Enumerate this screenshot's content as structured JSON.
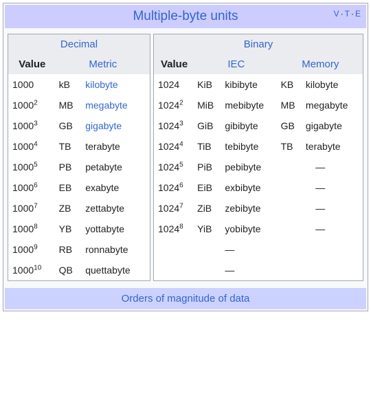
{
  "title": "Multiple-byte units",
  "vte": {
    "v": "V",
    "t": "T",
    "e": "E"
  },
  "footer_label": "Orders of magnitude of data",
  "colors": {
    "header_bg": "#ccccff",
    "sub_header_bg": "#eaecf0",
    "link": "#3366cc",
    "border": "#a2a9b1",
    "footer_bg": "#ccd2ff"
  },
  "decimal": {
    "heading": "Decimal",
    "col_value": "Value",
    "col_metric": "Metric",
    "base": "1000",
    "rows": [
      {
        "exp": "",
        "sym": "kB",
        "name": "kilobyte",
        "link": true
      },
      {
        "exp": "2",
        "sym": "MB",
        "name": "megabyte",
        "link": true
      },
      {
        "exp": "3",
        "sym": "GB",
        "name": "gigabyte",
        "link": true
      },
      {
        "exp": "4",
        "sym": "TB",
        "name": "terabyte",
        "link": false
      },
      {
        "exp": "5",
        "sym": "PB",
        "name": "petabyte",
        "link": false
      },
      {
        "exp": "6",
        "sym": "EB",
        "name": "exabyte",
        "link": false
      },
      {
        "exp": "7",
        "sym": "ZB",
        "name": "zettabyte",
        "link": false
      },
      {
        "exp": "8",
        "sym": "YB",
        "name": "yottabyte",
        "link": false
      },
      {
        "exp": "9",
        "sym": "RB",
        "name": "ronnabyte",
        "link": false
      },
      {
        "exp": "10",
        "sym": "QB",
        "name": "quettabyte",
        "link": false
      }
    ]
  },
  "binary": {
    "heading": "Binary",
    "col_value": "Value",
    "col_iec": "IEC",
    "col_memory": "Memory",
    "base": "1024",
    "rows": [
      {
        "exp": "",
        "iec_sym": "KiB",
        "iec_name": "kibibyte",
        "mem_sym": "KB",
        "mem_name": "kilobyte"
      },
      {
        "exp": "2",
        "iec_sym": "MiB",
        "iec_name": "mebibyte",
        "mem_sym": "MB",
        "mem_name": "megabyte"
      },
      {
        "exp": "3",
        "iec_sym": "GiB",
        "iec_name": "gibibyte",
        "mem_sym": "GB",
        "mem_name": "gigabyte"
      },
      {
        "exp": "4",
        "iec_sym": "TiB",
        "iec_name": "tebibyte",
        "mem_sym": "TB",
        "mem_name": "terabyte"
      },
      {
        "exp": "5",
        "iec_sym": "PiB",
        "iec_name": "pebibyte",
        "mem_sym": "—",
        "mem_name": ""
      },
      {
        "exp": "6",
        "iec_sym": "EiB",
        "iec_name": "exbibyte",
        "mem_sym": "—",
        "mem_name": ""
      },
      {
        "exp": "7",
        "iec_sym": "ZiB",
        "iec_name": "zebibyte",
        "mem_sym": "—",
        "mem_name": ""
      },
      {
        "exp": "8",
        "iec_sym": "YiB",
        "iec_name": "yobibyte",
        "mem_sym": "—",
        "mem_name": ""
      },
      {
        "exp": "",
        "iec_sym": "",
        "iec_name": "—",
        "mem_sym": "",
        "mem_name": "",
        "blank_value": true
      },
      {
        "exp": "",
        "iec_sym": "",
        "iec_name": "—",
        "mem_sym": "",
        "mem_name": "",
        "blank_value": true
      }
    ]
  }
}
